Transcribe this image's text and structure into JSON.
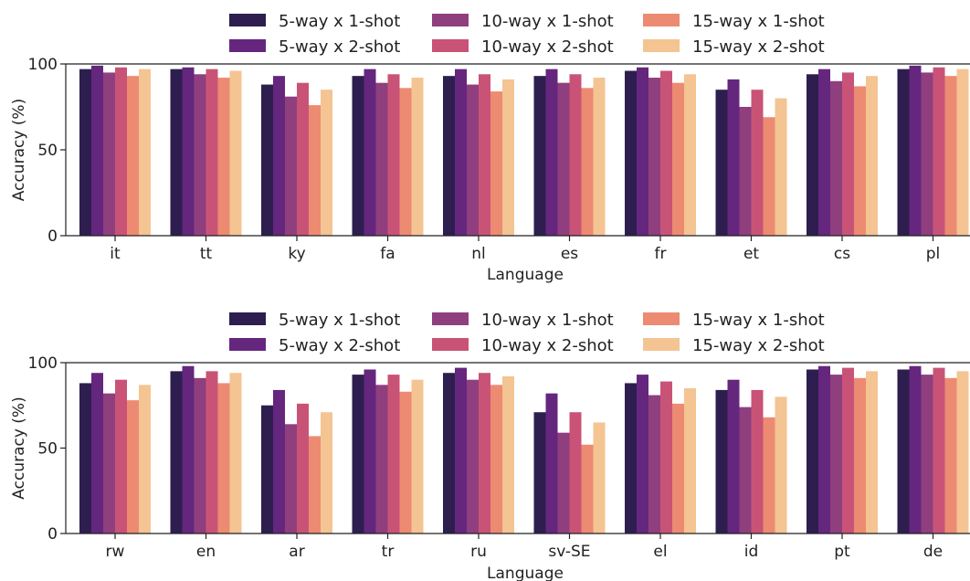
{
  "chart_data": [
    {
      "type": "bar",
      "xlabel": "Language",
      "ylabel": "Accuracy (%)",
      "ylim": [
        0,
        100
      ],
      "yticks": [
        0,
        50,
        100
      ],
      "legend": "top-center, 3 columns",
      "grid": false,
      "categories": [
        "it",
        "tt",
        "ky",
        "fa",
        "nl",
        "es",
        "fr",
        "et",
        "cs",
        "pl"
      ],
      "series": [
        {
          "name": "5-way x 1-shot",
          "color": "#2d1e4f",
          "values": [
            97,
            97,
            88,
            93,
            93,
            93,
            96,
            85,
            94,
            97
          ]
        },
        {
          "name": "5-way x 2-shot",
          "color": "#65267e",
          "values": [
            99,
            98,
            93,
            97,
            97,
            97,
            98,
            91,
            97,
            99
          ]
        },
        {
          "name": "10-way x 1-shot",
          "color": "#8f3f7e",
          "values": [
            95,
            94,
            81,
            89,
            88,
            89,
            92,
            75,
            90,
            95
          ]
        },
        {
          "name": "10-way x 2-shot",
          "color": "#c95377",
          "values": [
            98,
            97,
            89,
            94,
            94,
            94,
            96,
            85,
            95,
            98
          ]
        },
        {
          "name": "15-way x 1-shot",
          "color": "#ec8b72",
          "values": [
            93,
            92,
            76,
            86,
            84,
            86,
            89,
            69,
            87,
            93
          ]
        },
        {
          "name": "15-way x 2-shot",
          "color": "#f4c493",
          "values": [
            97,
            96,
            85,
            92,
            91,
            92,
            94,
            80,
            93,
            97
          ]
        }
      ]
    },
    {
      "type": "bar",
      "xlabel": "Language",
      "ylabel": "Accuracy (%)",
      "ylim": [
        0,
        100
      ],
      "yticks": [
        0,
        50,
        100
      ],
      "legend": "top-center, 3 columns",
      "grid": false,
      "categories": [
        "rw",
        "en",
        "ar",
        "tr",
        "ru",
        "sv-SE",
        "el",
        "id",
        "pt",
        "de"
      ],
      "series": [
        {
          "name": "5-way x 1-shot",
          "color": "#2d1e4f",
          "values": [
            88,
            95,
            75,
            93,
            94,
            71,
            88,
            84,
            96,
            96
          ]
        },
        {
          "name": "5-way x 2-shot",
          "color": "#65267e",
          "values": [
            94,
            98,
            84,
            96,
            97,
            82,
            93,
            90,
            98,
            98
          ]
        },
        {
          "name": "10-way x 1-shot",
          "color": "#8f3f7e",
          "values": [
            82,
            91,
            64,
            87,
            90,
            59,
            81,
            74,
            93,
            93
          ]
        },
        {
          "name": "10-way x 2-shot",
          "color": "#c95377",
          "values": [
            90,
            95,
            76,
            93,
            94,
            71,
            89,
            84,
            97,
            97
          ]
        },
        {
          "name": "15-way x 1-shot",
          "color": "#ec8b72",
          "values": [
            78,
            88,
            57,
            83,
            87,
            52,
            76,
            68,
            91,
            91
          ]
        },
        {
          "name": "15-way x 2-shot",
          "color": "#f4c493",
          "values": [
            87,
            94,
            71,
            90,
            92,
            65,
            85,
            80,
            95,
            95
          ]
        }
      ]
    }
  ]
}
